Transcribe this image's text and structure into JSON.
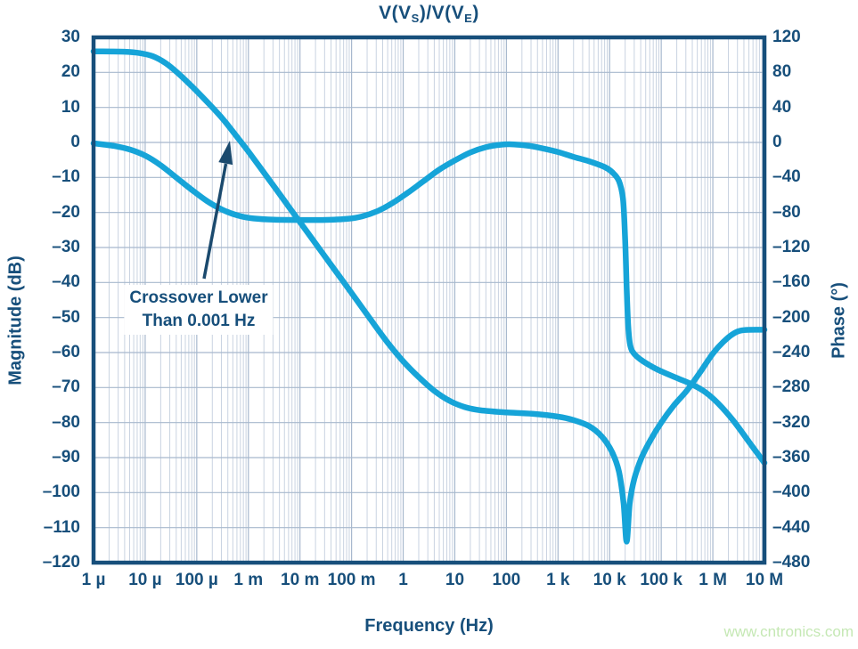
{
  "title": {
    "parts": [
      {
        "text": "V(V"
      },
      {
        "text": "S",
        "sub": true
      },
      {
        "text": ")/V(V"
      },
      {
        "text": "E",
        "sub": true
      },
      {
        "text": ")"
      }
    ]
  },
  "watermark": "www.cntronics.com",
  "annotation": {
    "line1": "Crossover Lower",
    "line2": "Than 0.001 Hz",
    "target": "0 dB crossover of magnitude curve"
  },
  "chart_data": {
    "type": "line",
    "title": "V(VS)/V(VE)",
    "x_axis": {
      "label": "Frequency (Hz)",
      "scale": "log",
      "min_exponent": -6,
      "max_exponent": 7,
      "tick_labels": [
        "1 µ",
        "10 µ",
        "100 µ",
        "1 m",
        "10 m",
        "100 m",
        "1",
        "10",
        "100",
        "1 k",
        "10 k",
        "100 k",
        "1 M",
        "10 M"
      ]
    },
    "y_left": {
      "label": "Magnitude (dB)",
      "min": -120,
      "max": 30,
      "step": 10,
      "ticks": [
        30,
        20,
        10,
        0,
        -10,
        -20,
        -30,
        -40,
        -50,
        -60,
        -70,
        -80,
        -90,
        -100,
        -110,
        -120
      ]
    },
    "y_right": {
      "label": "Phase (°)",
      "min": -480,
      "max": 120,
      "step": 40,
      "ticks": [
        120,
        80,
        40,
        0,
        -40,
        -80,
        -120,
        -160,
        -200,
        -240,
        -280,
        -320,
        -360,
        -400,
        -440,
        -480
      ]
    },
    "grid": "log-major-minor",
    "legend": "none",
    "series": [
      {
        "name": "Magnitude",
        "axis": "left",
        "units": "dB",
        "points_log10f_value": [
          [
            -6,
            26
          ],
          [
            -5.4,
            25.9
          ],
          [
            -5.1,
            25.5
          ],
          [
            -4.85,
            24.6
          ],
          [
            -4.6,
            22.6
          ],
          [
            -4.35,
            19.6
          ],
          [
            -4.1,
            16.1
          ],
          [
            -3.8,
            11.6
          ],
          [
            -3.5,
            6.8
          ],
          [
            -3.2,
            1.2
          ],
          [
            -3,
            -2.6
          ],
          [
            -2.6,
            -10.6
          ],
          [
            -2.2,
            -18.7
          ],
          [
            -1.8,
            -26.8
          ],
          [
            -1.4,
            -34.9
          ],
          [
            -1,
            -43
          ],
          [
            -0.6,
            -51.2
          ],
          [
            -0.3,
            -57.2
          ],
          [
            0,
            -62.5
          ],
          [
            0.3,
            -67
          ],
          [
            0.6,
            -70.9
          ],
          [
            0.9,
            -73.8
          ],
          [
            1.2,
            -75.6
          ],
          [
            1.5,
            -76.5
          ],
          [
            2,
            -77.1
          ],
          [
            2.5,
            -77.5
          ],
          [
            3,
            -78.3
          ],
          [
            3.3,
            -79.3
          ],
          [
            3.6,
            -81
          ],
          [
            3.85,
            -84
          ],
          [
            4.05,
            -88.5
          ],
          [
            4.18,
            -94
          ],
          [
            4.27,
            -103
          ],
          [
            4.33,
            -114
          ],
          [
            4.39,
            -103
          ],
          [
            4.48,
            -96
          ],
          [
            4.62,
            -90
          ],
          [
            4.8,
            -84.8
          ],
          [
            5,
            -80
          ],
          [
            5.25,
            -75
          ],
          [
            5.5,
            -70.8
          ],
          [
            5.75,
            -65.7
          ],
          [
            6,
            -60.3
          ],
          [
            6.2,
            -57
          ],
          [
            6.4,
            -54.6
          ],
          [
            6.6,
            -53.6
          ],
          [
            7,
            -53.5
          ]
        ]
      },
      {
        "name": "Phase",
        "axis": "right",
        "units": "deg",
        "points_log10f_value": [
          [
            -6,
            -1
          ],
          [
            -5.6,
            -4
          ],
          [
            -5.3,
            -8
          ],
          [
            -5,
            -15
          ],
          [
            -4.7,
            -26
          ],
          [
            -4.4,
            -40
          ],
          [
            -4.1,
            -54
          ],
          [
            -3.8,
            -67
          ],
          [
            -3.5,
            -77
          ],
          [
            -3.2,
            -83.5
          ],
          [
            -2.9,
            -86.8
          ],
          [
            -2.5,
            -88.3
          ],
          [
            -2,
            -88.6
          ],
          [
            -1.5,
            -88.5
          ],
          [
            -1.1,
            -87.4
          ],
          [
            -0.8,
            -84.5
          ],
          [
            -0.5,
            -78.5
          ],
          [
            -0.2,
            -69
          ],
          [
            0.1,
            -57
          ],
          [
            0.4,
            -44
          ],
          [
            0.7,
            -31
          ],
          [
            1,
            -20.5
          ],
          [
            1.3,
            -11.5
          ],
          [
            1.6,
            -5.5
          ],
          [
            1.9,
            -2.5
          ],
          [
            2.15,
            -2.2
          ],
          [
            2.45,
            -4
          ],
          [
            2.7,
            -6.8
          ],
          [
            3,
            -11
          ],
          [
            3.3,
            -16.5
          ],
          [
            3.6,
            -21.5
          ],
          [
            3.9,
            -28
          ],
          [
            4.05,
            -34
          ],
          [
            4.18,
            -44
          ],
          [
            4.26,
            -65
          ],
          [
            4.3,
            -110
          ],
          [
            4.33,
            -165
          ],
          [
            4.36,
            -210
          ],
          [
            4.4,
            -232
          ],
          [
            4.47,
            -241
          ],
          [
            4.6,
            -248
          ],
          [
            4.8,
            -255.5
          ],
          [
            5,
            -261.5
          ],
          [
            5.3,
            -269
          ],
          [
            5.6,
            -276.5
          ],
          [
            5.85,
            -285
          ],
          [
            6.1,
            -298
          ],
          [
            6.4,
            -318
          ],
          [
            6.7,
            -342
          ],
          [
            7,
            -366
          ]
        ]
      }
    ],
    "colors": {
      "curve": "#16a4d8",
      "axis_text": "#174f7b",
      "border": "#174f7b",
      "grid_minor": "#c9d3e1",
      "grid_major": "#a7b8cd",
      "annotation_arrow": "#1b4a6e",
      "watermark": "#c5e8b4",
      "background": "#ffffff"
    }
  }
}
